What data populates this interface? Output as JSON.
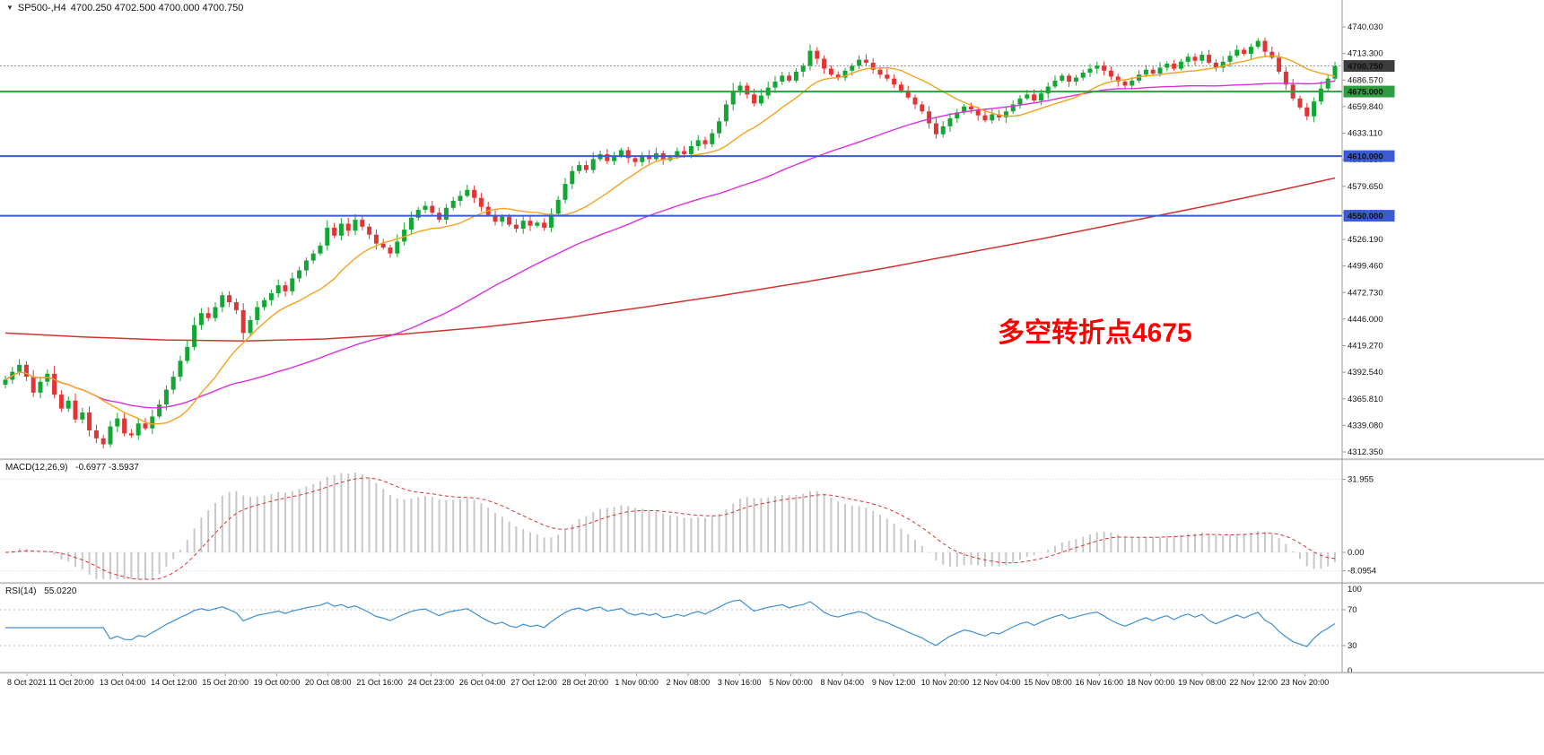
{
  "window": {
    "symbol_period": "SP500-,H4",
    "ohlc": "4700.250 4702.500 4700.000 4700.750"
  },
  "annotation": {
    "text": "多空转折点4675",
    "color": "#ff0000"
  },
  "colors": {
    "candle_up": "#12a633",
    "candle_down": "#e23434",
    "ma_fast": "#f5a31c",
    "ma_medium": "#dd2fdd",
    "ma_slow": "#d1342c",
    "macd_hist": "#c8c8c8",
    "macd_signal": "#dd3333",
    "rsi_line": "#3d8fd6",
    "level_green": "#2f9e41",
    "level_blue": "#3c5bd2",
    "current_badge": "#3d3d3d",
    "separator": "#9b9b9b"
  },
  "price_axis": {
    "ticks": [
      "4740.030",
      "4713.300",
      "4686.570",
      "4659.840",
      "4633.110",
      "4606.380",
      "4579.650",
      "4552.920",
      "4526.190",
      "4499.460",
      "4472.730",
      "4446.000",
      "4419.270",
      "4392.540",
      "4365.810",
      "4339.080",
      "4312.350"
    ],
    "badges": [
      {
        "text": "4700.750",
        "price": 4700.75,
        "bg": "#3d3d3d",
        "fg": "#ffffff"
      },
      {
        "text": "4675.000",
        "price": 4675.0,
        "bg": "#2f9e41",
        "fg": "#ffffff"
      },
      {
        "text": "4610.000",
        "price": 4610.0,
        "bg": "#3c5bd2",
        "fg": "#ffffff"
      },
      {
        "text": "4550.000",
        "price": 4550.0,
        "bg": "#3c5bd2",
        "fg": "#ffffff"
      }
    ]
  },
  "time_axis": {
    "labels": [
      "8 Oct 2021",
      "11 Oct 20:00",
      "13 Oct 04:00",
      "14 Oct 12:00",
      "15 Oct 20:00",
      "19 Oct 00:00",
      "20 Oct 08:00",
      "21 Oct 16:00",
      "24 Oct 23:00",
      "26 Oct 04:00",
      "27 Oct 12:00",
      "28 Oct 20:00",
      "1 Nov 00:00",
      "2 Nov 08:00",
      "3 Nov 16:00",
      "5 Nov 00:00",
      "8 Nov 04:00",
      "9 Nov 12:00",
      "10 Nov 20:00",
      "12 Nov 04:00",
      "15 Nov 08:00",
      "16 Nov 16:00",
      "18 Nov 00:00",
      "19 Nov 08:00",
      "22 Nov 12:00",
      "23 Nov 20:00"
    ]
  },
  "indicators": {
    "macd": {
      "label": "MACD(12,26,9)",
      "values": "-0.6977 -3.5937"
    },
    "rsi": {
      "label": "RSI(14)",
      "value": "55.0220"
    }
  },
  "chart_data": {
    "type": "candlestick",
    "symbol": "SP500-",
    "timeframe": "H4",
    "current_candle": {
      "open": 4700.25,
      "high": 4702.5,
      "low": 4700.0,
      "close": 4700.75
    },
    "price_range": {
      "top": 4740.03,
      "bottom": 4312.35
    },
    "closes": [
      4385,
      4393,
      4400,
      4388,
      4372,
      4383,
      4391,
      4370,
      4356,
      4364,
      4345,
      4352,
      4334,
      4326,
      4320,
      4338,
      4346,
      4331,
      4329,
      4341,
      4336,
      4348,
      4360,
      4375,
      4388,
      4404,
      4418,
      4440,
      4452,
      4447,
      4458,
      4470,
      4463,
      4455,
      4432,
      4445,
      4458,
      4465,
      4472,
      4480,
      4474,
      4487,
      4495,
      4505,
      4512,
      4520,
      4538,
      4530,
      4542,
      4535,
      4546,
      4539,
      4531,
      4522,
      4518,
      4512,
      4524,
      4536,
      4548,
      4556,
      4560,
      4553,
      4546,
      4558,
      4565,
      4570,
      4576,
      4568,
      4559,
      4551,
      4544,
      4549,
      4541,
      4537,
      4545,
      4540,
      4543,
      4538,
      4552,
      4566,
      4582,
      4595,
      4601,
      4596,
      4607,
      4612,
      4605,
      4610,
      4616,
      4608,
      4604,
      4611,
      4607,
      4613,
      4606,
      4609,
      4615,
      4612,
      4620,
      4626,
      4622,
      4633,
      4645,
      4662,
      4676,
      4681,
      4672,
      4663,
      4671,
      4679,
      4685,
      4691,
      4686,
      4695,
      4701,
      4716,
      4708,
      4698,
      4692,
      4689,
      4696,
      4701,
      4707,
      4704,
      4697,
      4692,
      4688,
      4682,
      4676,
      4669,
      4662,
      4655,
      4643,
      4632,
      4640,
      4648,
      4654,
      4660,
      4657,
      4651,
      4646,
      4652,
      4649,
      4655,
      4662,
      4668,
      4672,
      4666,
      4673,
      4680,
      4686,
      4691,
      4685,
      4689,
      4694,
      4698,
      4701,
      4696,
      4690,
      4685,
      4681,
      4686,
      4692,
      4697,
      4693,
      4699,
      4703,
      4698,
      4705,
      4710,
      4706,
      4712,
      4704,
      4699,
      4705,
      4711,
      4717,
      4713,
      4720,
      4726,
      4715,
      4709,
      4695,
      4682,
      4668,
      4659,
      4650,
      4665,
      4678,
      4688,
      4700.75
    ],
    "moving_averages": {
      "fast": {
        "period": 14,
        "color_key": "ma_fast"
      },
      "medium": {
        "period": 56,
        "color_key": "ma_medium"
      },
      "slow_points": [
        [
          0,
          4432
        ],
        [
          0.06,
          4428
        ],
        [
          0.12,
          4425
        ],
        [
          0.18,
          4424
        ],
        [
          0.24,
          4426
        ],
        [
          0.3,
          4431
        ],
        [
          0.36,
          4438
        ],
        [
          0.42,
          4447
        ],
        [
          0.48,
          4458
        ],
        [
          0.54,
          4470
        ],
        [
          0.6,
          4483
        ],
        [
          0.66,
          4497
        ],
        [
          0.72,
          4512
        ],
        [
          0.78,
          4527
        ],
        [
          0.84,
          4543
        ],
        [
          0.9,
          4559
        ],
        [
          0.96,
          4576
        ],
        [
          1,
          4588
        ]
      ]
    },
    "horizontal_levels": [
      {
        "price": 4675.0,
        "color_key": "level_green",
        "label": "4675.000"
      },
      {
        "price": 4610.0,
        "color_key": "level_blue",
        "label": "4610.000"
      },
      {
        "price": 4550.0,
        "color_key": "level_blue",
        "label": "4550.000"
      }
    ],
    "current_price": {
      "price": 4700.75,
      "label": "4700.750"
    },
    "macd": {
      "fast": 12,
      "slow": 26,
      "signal": 9,
      "value": -0.6977,
      "signal_value": -3.5937,
      "axis": [
        {
          "t": "31.955",
          "v": 31.955
        },
        {
          "t": "0.00",
          "v": 0
        },
        {
          "t": "-8.0954",
          "v": -8.0954
        }
      ]
    },
    "rsi": {
      "period": 14,
      "value": 55.022,
      "levels": [
        70,
        30
      ],
      "axis": [
        {
          "t": "100",
          "v": 100
        },
        {
          "t": "70",
          "v": 70
        },
        {
          "t": "30",
          "v": 30
        },
        {
          "t": "0",
          "v": 0
        }
      ]
    }
  }
}
